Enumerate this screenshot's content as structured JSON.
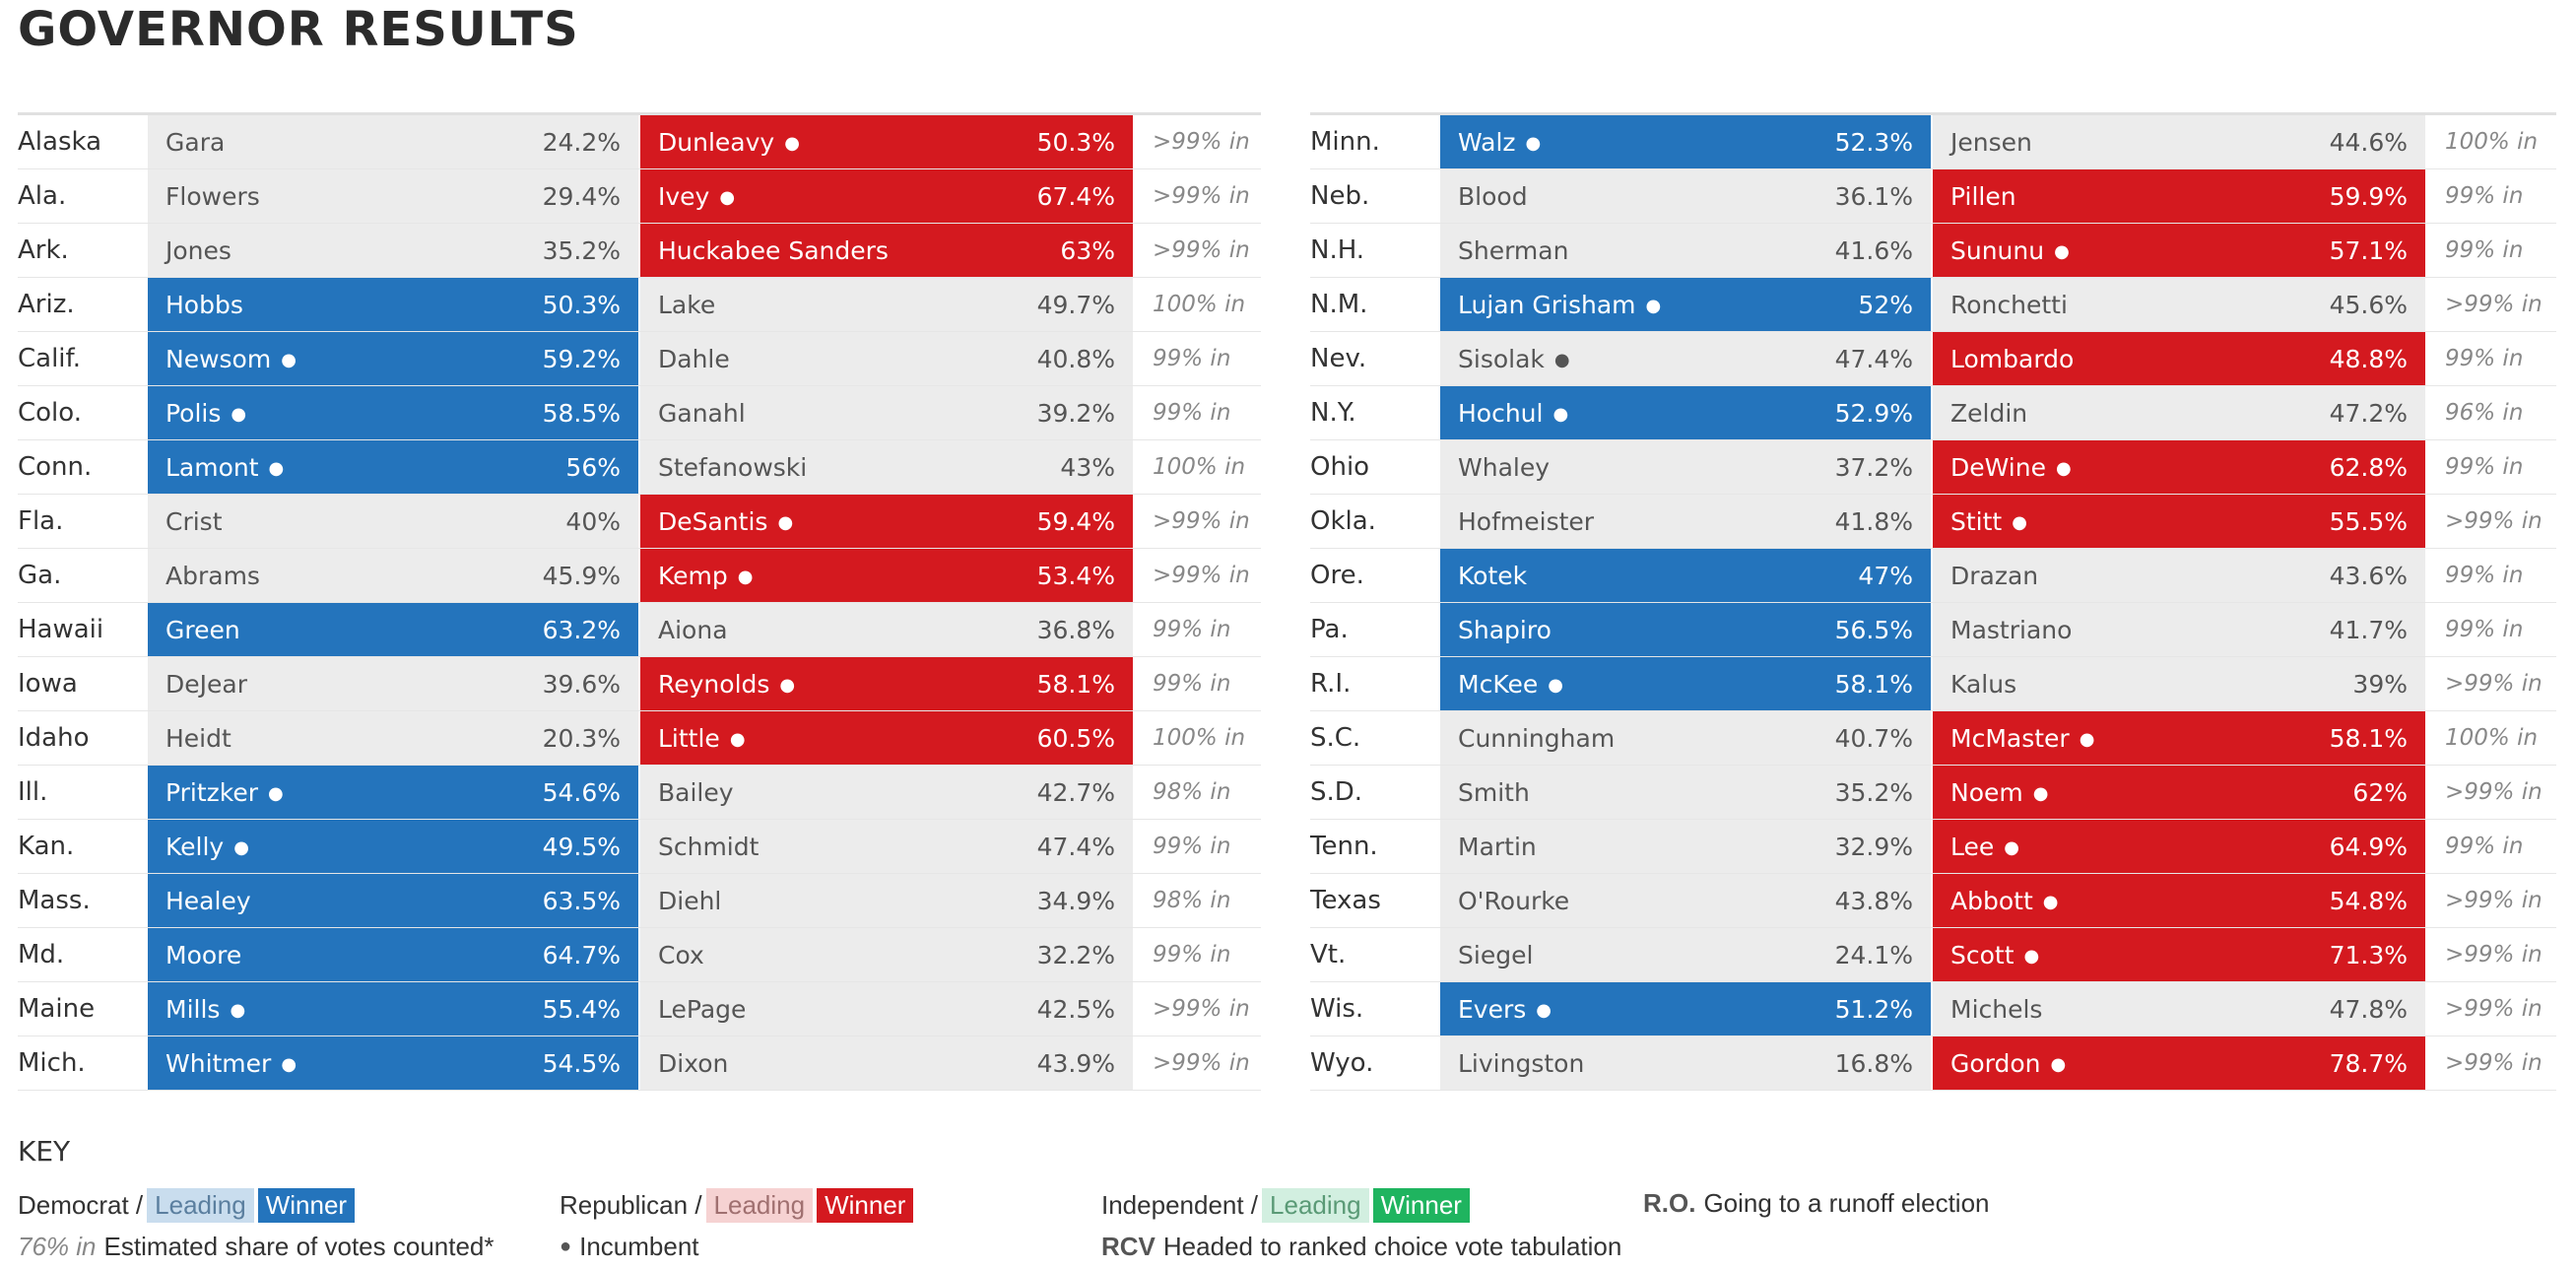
{
  "title": "GOVERNOR RESULTS",
  "left_rows": [
    {
      "state": "Alaska",
      "dem": "Gara",
      "dem_pct": "24.2%",
      "dem_inc": false,
      "rep": "Dunleavy",
      "rep_pct": "50.3%",
      "rep_inc": true,
      "winner": "rep",
      "reporting": ">99% in"
    },
    {
      "state": "Ala.",
      "dem": "Flowers",
      "dem_pct": "29.4%",
      "dem_inc": false,
      "rep": "Ivey",
      "rep_pct": "67.4%",
      "rep_inc": true,
      "winner": "rep",
      "reporting": ">99% in"
    },
    {
      "state": "Ark.",
      "dem": "Jones",
      "dem_pct": "35.2%",
      "dem_inc": false,
      "rep": "Huckabee Sanders",
      "rep_pct": "63%",
      "rep_inc": false,
      "winner": "rep",
      "reporting": ">99% in"
    },
    {
      "state": "Ariz.",
      "dem": "Hobbs",
      "dem_pct": "50.3%",
      "dem_inc": false,
      "rep": "Lake",
      "rep_pct": "49.7%",
      "rep_inc": false,
      "winner": "dem",
      "reporting": "100% in"
    },
    {
      "state": "Calif.",
      "dem": "Newsom",
      "dem_pct": "59.2%",
      "dem_inc": true,
      "rep": "Dahle",
      "rep_pct": "40.8%",
      "rep_inc": false,
      "winner": "dem",
      "reporting": "99% in"
    },
    {
      "state": "Colo.",
      "dem": "Polis",
      "dem_pct": "58.5%",
      "dem_inc": true,
      "rep": "Ganahl",
      "rep_pct": "39.2%",
      "rep_inc": false,
      "winner": "dem",
      "reporting": "99% in"
    },
    {
      "state": "Conn.",
      "dem": "Lamont",
      "dem_pct": "56%",
      "dem_inc": true,
      "rep": "Stefanowski",
      "rep_pct": "43%",
      "rep_inc": false,
      "winner": "dem",
      "reporting": "100% in"
    },
    {
      "state": "Fla.",
      "dem": "Crist",
      "dem_pct": "40%",
      "dem_inc": false,
      "rep": "DeSantis",
      "rep_pct": "59.4%",
      "rep_inc": true,
      "winner": "rep",
      "reporting": ">99% in"
    },
    {
      "state": "Ga.",
      "dem": "Abrams",
      "dem_pct": "45.9%",
      "dem_inc": false,
      "rep": "Kemp",
      "rep_pct": "53.4%",
      "rep_inc": true,
      "winner": "rep",
      "reporting": ">99% in"
    },
    {
      "state": "Hawaii",
      "dem": "Green",
      "dem_pct": "63.2%",
      "dem_inc": false,
      "rep": "Aiona",
      "rep_pct": "36.8%",
      "rep_inc": false,
      "winner": "dem",
      "reporting": "99% in"
    },
    {
      "state": "Iowa",
      "dem": "DeJear",
      "dem_pct": "39.6%",
      "dem_inc": false,
      "rep": "Reynolds",
      "rep_pct": "58.1%",
      "rep_inc": true,
      "winner": "rep",
      "reporting": "99% in"
    },
    {
      "state": "Idaho",
      "dem": "Heidt",
      "dem_pct": "20.3%",
      "dem_inc": false,
      "rep": "Little",
      "rep_pct": "60.5%",
      "rep_inc": true,
      "winner": "rep",
      "reporting": "100% in"
    },
    {
      "state": "Ill.",
      "dem": "Pritzker",
      "dem_pct": "54.6%",
      "dem_inc": true,
      "rep": "Bailey",
      "rep_pct": "42.7%",
      "rep_inc": false,
      "winner": "dem",
      "reporting": "98% in"
    },
    {
      "state": "Kan.",
      "dem": "Kelly",
      "dem_pct": "49.5%",
      "dem_inc": true,
      "rep": "Schmidt",
      "rep_pct": "47.4%",
      "rep_inc": false,
      "winner": "dem",
      "reporting": "99% in"
    },
    {
      "state": "Mass.",
      "dem": "Healey",
      "dem_pct": "63.5%",
      "dem_inc": false,
      "rep": "Diehl",
      "rep_pct": "34.9%",
      "rep_inc": false,
      "winner": "dem",
      "reporting": "98% in"
    },
    {
      "state": "Md.",
      "dem": "Moore",
      "dem_pct": "64.7%",
      "dem_inc": false,
      "rep": "Cox",
      "rep_pct": "32.2%",
      "rep_inc": false,
      "winner": "dem",
      "reporting": "99% in"
    },
    {
      "state": "Maine",
      "dem": "Mills",
      "dem_pct": "55.4%",
      "dem_inc": true,
      "rep": "LePage",
      "rep_pct": "42.5%",
      "rep_inc": false,
      "winner": "dem",
      "reporting": ">99% in"
    },
    {
      "state": "Mich.",
      "dem": "Whitmer",
      "dem_pct": "54.5%",
      "dem_inc": true,
      "rep": "Dixon",
      "rep_pct": "43.9%",
      "rep_inc": false,
      "winner": "dem",
      "reporting": ">99% in"
    }
  ],
  "right_rows": [
    {
      "state": "Minn.",
      "dem": "Walz",
      "dem_pct": "52.3%",
      "dem_inc": true,
      "rep": "Jensen",
      "rep_pct": "44.6%",
      "rep_inc": false,
      "winner": "dem",
      "reporting": "100% in"
    },
    {
      "state": "Neb.",
      "dem": "Blood",
      "dem_pct": "36.1%",
      "dem_inc": false,
      "rep": "Pillen",
      "rep_pct": "59.9%",
      "rep_inc": false,
      "winner": "rep",
      "reporting": "99% in"
    },
    {
      "state": "N.H.",
      "dem": "Sherman",
      "dem_pct": "41.6%",
      "dem_inc": false,
      "rep": "Sununu",
      "rep_pct": "57.1%",
      "rep_inc": true,
      "winner": "rep",
      "reporting": "99% in"
    },
    {
      "state": "N.M.",
      "dem": "Lujan Grisham",
      "dem_pct": "52%",
      "dem_inc": true,
      "rep": "Ronchetti",
      "rep_pct": "45.6%",
      "rep_inc": false,
      "winner": "dem",
      "reporting": ">99% in"
    },
    {
      "state": "Nev.",
      "dem": "Sisolak",
      "dem_pct": "47.4%",
      "dem_inc": true,
      "rep": "Lombardo",
      "rep_pct": "48.8%",
      "rep_inc": false,
      "winner": "rep",
      "reporting": "99% in"
    },
    {
      "state": "N.Y.",
      "dem": "Hochul",
      "dem_pct": "52.9%",
      "dem_inc": true,
      "rep": "Zeldin",
      "rep_pct": "47.2%",
      "rep_inc": false,
      "winner": "dem",
      "reporting": "96% in"
    },
    {
      "state": "Ohio",
      "dem": "Whaley",
      "dem_pct": "37.2%",
      "dem_inc": false,
      "rep": "DeWine",
      "rep_pct": "62.8%",
      "rep_inc": true,
      "winner": "rep",
      "reporting": "99% in"
    },
    {
      "state": "Okla.",
      "dem": "Hofmeister",
      "dem_pct": "41.8%",
      "dem_inc": false,
      "rep": "Stitt",
      "rep_pct": "55.5%",
      "rep_inc": true,
      "winner": "rep",
      "reporting": ">99% in"
    },
    {
      "state": "Ore.",
      "dem": "Kotek",
      "dem_pct": "47%",
      "dem_inc": false,
      "rep": "Drazan",
      "rep_pct": "43.6%",
      "rep_inc": false,
      "winner": "dem",
      "reporting": "99% in"
    },
    {
      "state": "Pa.",
      "dem": "Shapiro",
      "dem_pct": "56.5%",
      "dem_inc": false,
      "rep": "Mastriano",
      "rep_pct": "41.7%",
      "rep_inc": false,
      "winner": "dem",
      "reporting": "99% in"
    },
    {
      "state": "R.I.",
      "dem": "McKee",
      "dem_pct": "58.1%",
      "dem_inc": true,
      "rep": "Kalus",
      "rep_pct": "39%",
      "rep_inc": false,
      "winner": "dem",
      "reporting": ">99% in"
    },
    {
      "state": "S.C.",
      "dem": "Cunningham",
      "dem_pct": "40.7%",
      "dem_inc": false,
      "rep": "McMaster",
      "rep_pct": "58.1%",
      "rep_inc": true,
      "winner": "rep",
      "reporting": "100% in"
    },
    {
      "state": "S.D.",
      "dem": "Smith",
      "dem_pct": "35.2%",
      "dem_inc": false,
      "rep": "Noem",
      "rep_pct": "62%",
      "rep_inc": true,
      "winner": "rep",
      "reporting": ">99% in"
    },
    {
      "state": "Tenn.",
      "dem": "Martin",
      "dem_pct": "32.9%",
      "dem_inc": false,
      "rep": "Lee",
      "rep_pct": "64.9%",
      "rep_inc": true,
      "winner": "rep",
      "reporting": "99% in"
    },
    {
      "state": "Texas",
      "dem": "O'Rourke",
      "dem_pct": "43.8%",
      "dem_inc": false,
      "rep": "Abbott",
      "rep_pct": "54.8%",
      "rep_inc": true,
      "winner": "rep",
      "reporting": ">99% in"
    },
    {
      "state": "Vt.",
      "dem": "Siegel",
      "dem_pct": "24.1%",
      "dem_inc": false,
      "rep": "Scott",
      "rep_pct": "71.3%",
      "rep_inc": true,
      "winner": "rep",
      "reporting": ">99% in"
    },
    {
      "state": "Wis.",
      "dem": "Evers",
      "dem_pct": "51.2%",
      "dem_inc": true,
      "rep": "Michels",
      "rep_pct": "47.8%",
      "rep_inc": false,
      "winner": "dem",
      "reporting": ">99% in"
    },
    {
      "state": "Wyo.",
      "dem": "Livingston",
      "dem_pct": "16.8%",
      "dem_inc": false,
      "rep": "Gordon",
      "rep_pct": "78.7%",
      "rep_inc": true,
      "winner": "rep",
      "reporting": ">99% in"
    }
  ],
  "incumbent_glyph": "●",
  "key": {
    "title": "KEY",
    "democrat": "Democrat /",
    "republican": "Republican /",
    "independent": "Independent /",
    "leading": "Leading",
    "winner": "Winner",
    "runoff_code": "R.O.",
    "runoff_text": "Going to a runoff election",
    "share_example": "76% in",
    "share_text": "Estimated share of votes counted*",
    "incumbent_text": "Incumbent",
    "rcv_code": "RCV",
    "rcv_text": "Headed to ranked choice vote tabulation"
  },
  "colors": {
    "dem_winner": "#2474bc",
    "rep_winner": "#d4191f",
    "ind_winner": "#1fb45f",
    "loser_bg": "#ececec"
  }
}
